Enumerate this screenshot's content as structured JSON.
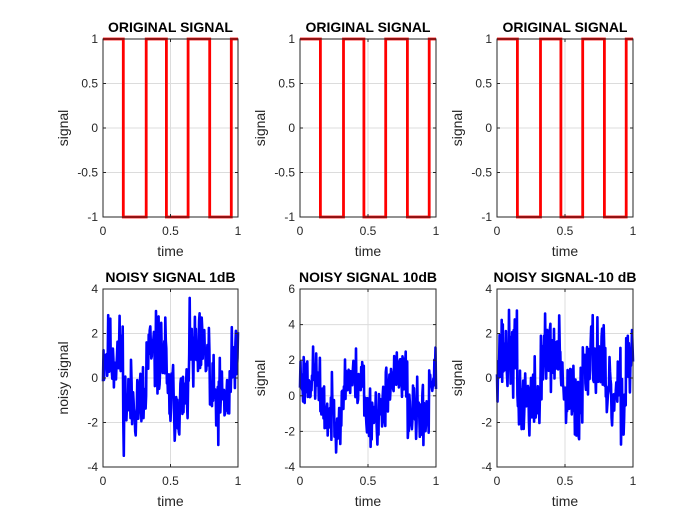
{
  "colors": {
    "original": "#ff0000",
    "noisy": "#0000ff",
    "grid": "#dcdcdc",
    "axis": "#262626"
  },
  "chart_data": [
    {
      "type": "line",
      "title": "ORIGINAL SIGNAL",
      "xlabel": "time",
      "ylabel": "signal",
      "xlim": [
        0,
        1
      ],
      "ylim": [
        -1,
        1
      ],
      "xticks": [
        0,
        0.5,
        1
      ],
      "xtick_labels": [
        "0",
        "0.5",
        "1"
      ],
      "yticks": [
        -1,
        -0.5,
        0,
        0.5,
        1
      ],
      "ytick_labels": [
        "-1",
        "-0.5",
        "0",
        "0.5",
        "1"
      ],
      "grid": true,
      "series_color": "original",
      "kind": "square",
      "series": [
        {
          "x": [
            0,
            0.15,
            0.15,
            0.32,
            0.32,
            0.47,
            0.47,
            0.63,
            0.63,
            0.79,
            0.79,
            0.95,
            0.95,
            1
          ],
          "y": [
            1,
            1,
            -1,
            -1,
            1,
            1,
            -1,
            -1,
            1,
            1,
            -1,
            -1,
            1,
            1
          ]
        }
      ]
    },
    {
      "type": "line",
      "title": "ORIGINAL SIGNAL",
      "xlabel": "time",
      "ylabel": "signal",
      "xlim": [
        0,
        1
      ],
      "ylim": [
        -1,
        1
      ],
      "xticks": [
        0,
        0.5,
        1
      ],
      "xtick_labels": [
        "0",
        "0.5",
        "1"
      ],
      "yticks": [
        -1,
        -0.5,
        0,
        0.5,
        1
      ],
      "ytick_labels": [
        "-1",
        "-0.5",
        "0",
        "0.5",
        "1"
      ],
      "grid": true,
      "series_color": "original",
      "kind": "square",
      "series": [
        {
          "x": [
            0,
            0.15,
            0.15,
            0.32,
            0.32,
            0.47,
            0.47,
            0.63,
            0.63,
            0.79,
            0.79,
            0.95,
            0.95,
            1
          ],
          "y": [
            1,
            1,
            -1,
            -1,
            1,
            1,
            -1,
            -1,
            1,
            1,
            -1,
            -1,
            1,
            1
          ]
        }
      ]
    },
    {
      "type": "line",
      "title": "ORIGINAL SIGNAL",
      "xlabel": "time",
      "ylabel": "signal",
      "xlim": [
        0,
        1
      ],
      "ylim": [
        -1,
        1
      ],
      "xticks": [
        0,
        0.5,
        1
      ],
      "xtick_labels": [
        "0",
        "0.5",
        "1"
      ],
      "yticks": [
        -1,
        -0.5,
        0,
        0.5,
        1
      ],
      "ytick_labels": [
        "-1",
        "-0.5",
        "0",
        "0.5",
        "1"
      ],
      "grid": true,
      "series_color": "original",
      "kind": "square",
      "series": [
        {
          "x": [
            0,
            0.15,
            0.15,
            0.32,
            0.32,
            0.47,
            0.47,
            0.63,
            0.63,
            0.79,
            0.79,
            0.95,
            0.95,
            1
          ],
          "y": [
            1,
            1,
            -1,
            -1,
            1,
            1,
            -1,
            -1,
            1,
            1,
            -1,
            -1,
            1,
            1
          ]
        }
      ]
    },
    {
      "type": "line",
      "title": "NOISY SIGNAL 1dB",
      "xlabel": "time",
      "ylabel": "noisy signal",
      "xlim": [
        0,
        1
      ],
      "ylim": [
        -4,
        4
      ],
      "xticks": [
        0,
        0.5,
        1
      ],
      "xtick_labels": [
        "0",
        "0.5",
        "1"
      ],
      "yticks": [
        -4,
        -2,
        0,
        2,
        4
      ],
      "ytick_labels": [
        "-4",
        "-2",
        "0",
        "2",
        "4"
      ],
      "grid": true,
      "series_color": "noisy",
      "kind": "noisy",
      "noise_amp": 1.3,
      "seed": 11,
      "series": [
        {
          "x": [
            0,
            0.15,
            0.15,
            0.32,
            0.32,
            0.47,
            0.47,
            0.63,
            0.63,
            0.79,
            0.79,
            0.95,
            0.95,
            1
          ],
          "y": [
            1,
            1,
            -1,
            -1,
            1,
            1,
            -1,
            -1,
            1,
            1,
            -1,
            -1,
            1,
            1
          ]
        }
      ]
    },
    {
      "type": "line",
      "title": "NOISY SIGNAL 10dB",
      "xlabel": "time",
      "ylabel": "signal",
      "xlim": [
        0,
        1
      ],
      "ylim": [
        -4,
        6
      ],
      "xticks": [
        0,
        0.5,
        1
      ],
      "xtick_labels": [
        "0",
        "0.5",
        "1"
      ],
      "yticks": [
        -4,
        -2,
        0,
        2,
        4,
        6
      ],
      "ytick_labels": [
        "-4",
        "-2",
        "0",
        "2",
        "4",
        "6"
      ],
      "grid": true,
      "series_color": "noisy",
      "kind": "noisy",
      "noise_amp": 1.2,
      "seed": 23,
      "series": [
        {
          "x": [
            0,
            0.15,
            0.15,
            0.32,
            0.32,
            0.47,
            0.47,
            0.63,
            0.63,
            0.79,
            0.79,
            0.95,
            0.95,
            1
          ],
          "y": [
            1,
            1,
            -1,
            -1,
            1,
            1,
            -1,
            -1,
            1,
            1,
            -1,
            -1,
            1,
            1
          ]
        }
      ]
    },
    {
      "type": "line",
      "title": "NOISY SIGNAL-10 dB",
      "xlabel": "time",
      "ylabel": "signal",
      "xlim": [
        0,
        1
      ],
      "ylim": [
        -4,
        4
      ],
      "xticks": [
        0,
        0.5,
        1
      ],
      "xtick_labels": [
        "0",
        "0.5",
        "1"
      ],
      "yticks": [
        -4,
        -2,
        0,
        2,
        4
      ],
      "ytick_labels": [
        "-4",
        "-2",
        "0",
        "2",
        "4"
      ],
      "grid": true,
      "series_color": "noisy",
      "kind": "noisy",
      "noise_amp": 1.3,
      "seed": 37,
      "series": [
        {
          "x": [
            0,
            0.15,
            0.15,
            0.32,
            0.32,
            0.47,
            0.47,
            0.63,
            0.63,
            0.79,
            0.79,
            0.95,
            0.95,
            1
          ],
          "y": [
            1,
            1,
            -1,
            -1,
            1,
            1,
            -1,
            -1,
            1,
            1,
            -1,
            -1,
            1,
            1
          ]
        }
      ]
    }
  ]
}
